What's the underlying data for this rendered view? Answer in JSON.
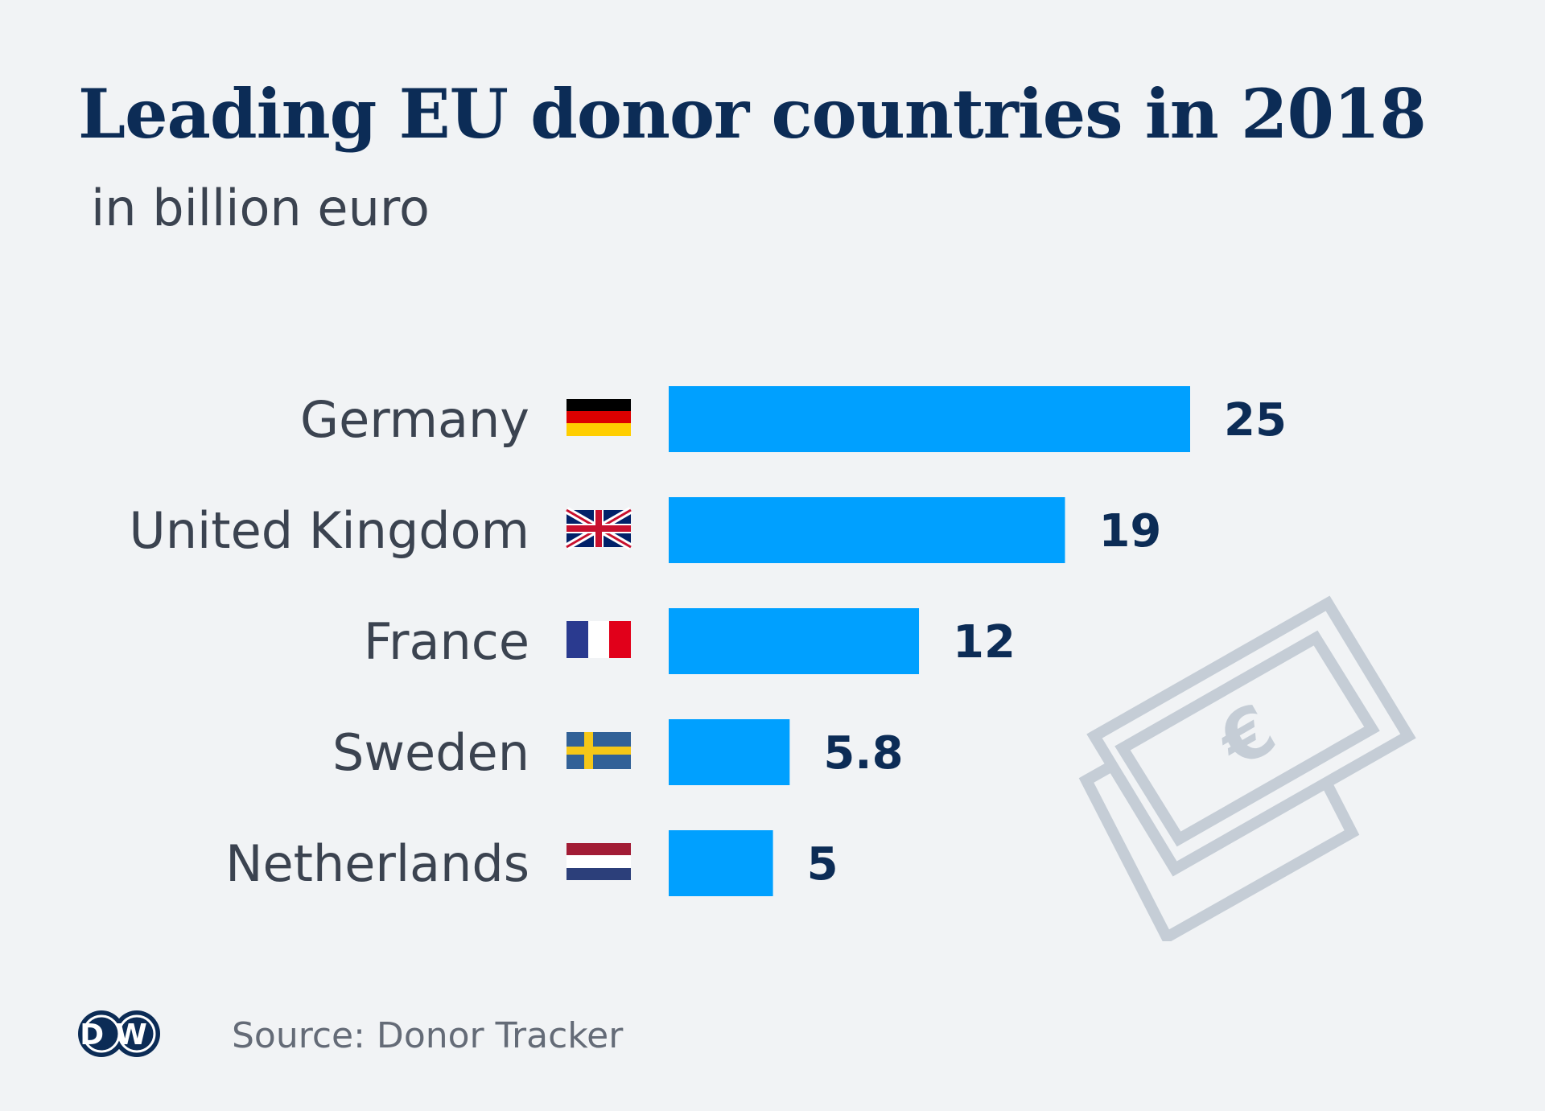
{
  "title": "Leading EU donor countries in 2018",
  "subtitle": "in billion euro",
  "source": "Source: Donor Tracker",
  "logo_text": "DW",
  "money_symbol": "€",
  "colors": {
    "bar": "#00a0ff",
    "title": "#0c2c56",
    "text": "#3b4350",
    "background": "#f1f3f5",
    "illustration": "#c5cdd6"
  },
  "chart_data": {
    "type": "bar",
    "orientation": "horizontal",
    "categories": [
      "Germany",
      "United Kingdom",
      "France",
      "Sweden",
      "Netherlands"
    ],
    "values": [
      25,
      19,
      12,
      5.8,
      5
    ],
    "value_labels": [
      "25",
      "19",
      "12",
      "5.8",
      "5"
    ],
    "flags": [
      "germany-flag-icon",
      "uk-flag-icon",
      "france-flag-icon",
      "sweden-flag-icon",
      "netherlands-flag-icon"
    ],
    "title": "Leading EU donor countries in 2018",
    "unit": "in billion euro",
    "xlim": [
      0,
      25
    ],
    "grid": false,
    "legend": "none"
  }
}
